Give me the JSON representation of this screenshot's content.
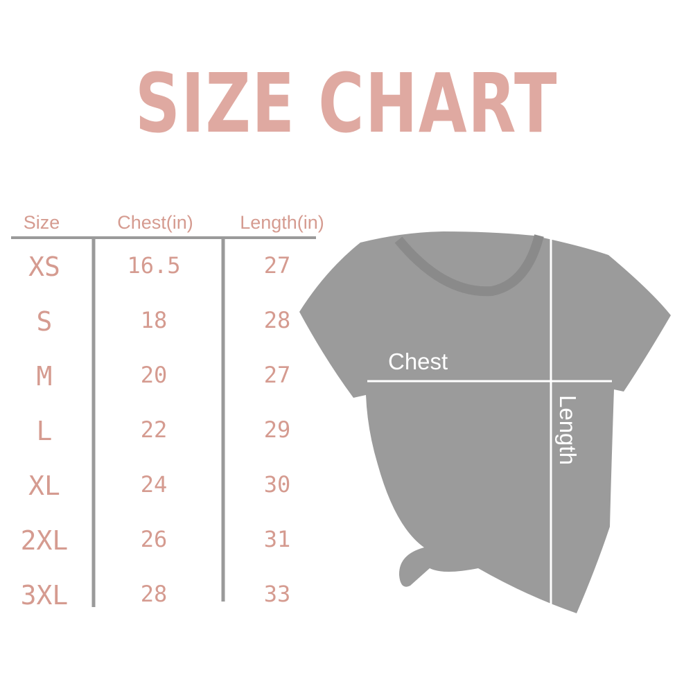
{
  "title": "SIZE CHART",
  "table": {
    "headers": [
      "Size",
      "Chest(in)",
      "Length(in)"
    ],
    "rows": [
      [
        "XS",
        "16.5",
        "27"
      ],
      [
        "S",
        "18",
        "28"
      ],
      [
        "M",
        "20",
        "27"
      ],
      [
        "L",
        "22",
        "29"
      ],
      [
        "XL",
        "24",
        "30"
      ],
      [
        "2XL",
        "26",
        "31"
      ],
      [
        "3XL",
        "28",
        "33"
      ]
    ]
  },
  "shirt": {
    "chest_label": "Chest",
    "length_label": "Length"
  }
}
